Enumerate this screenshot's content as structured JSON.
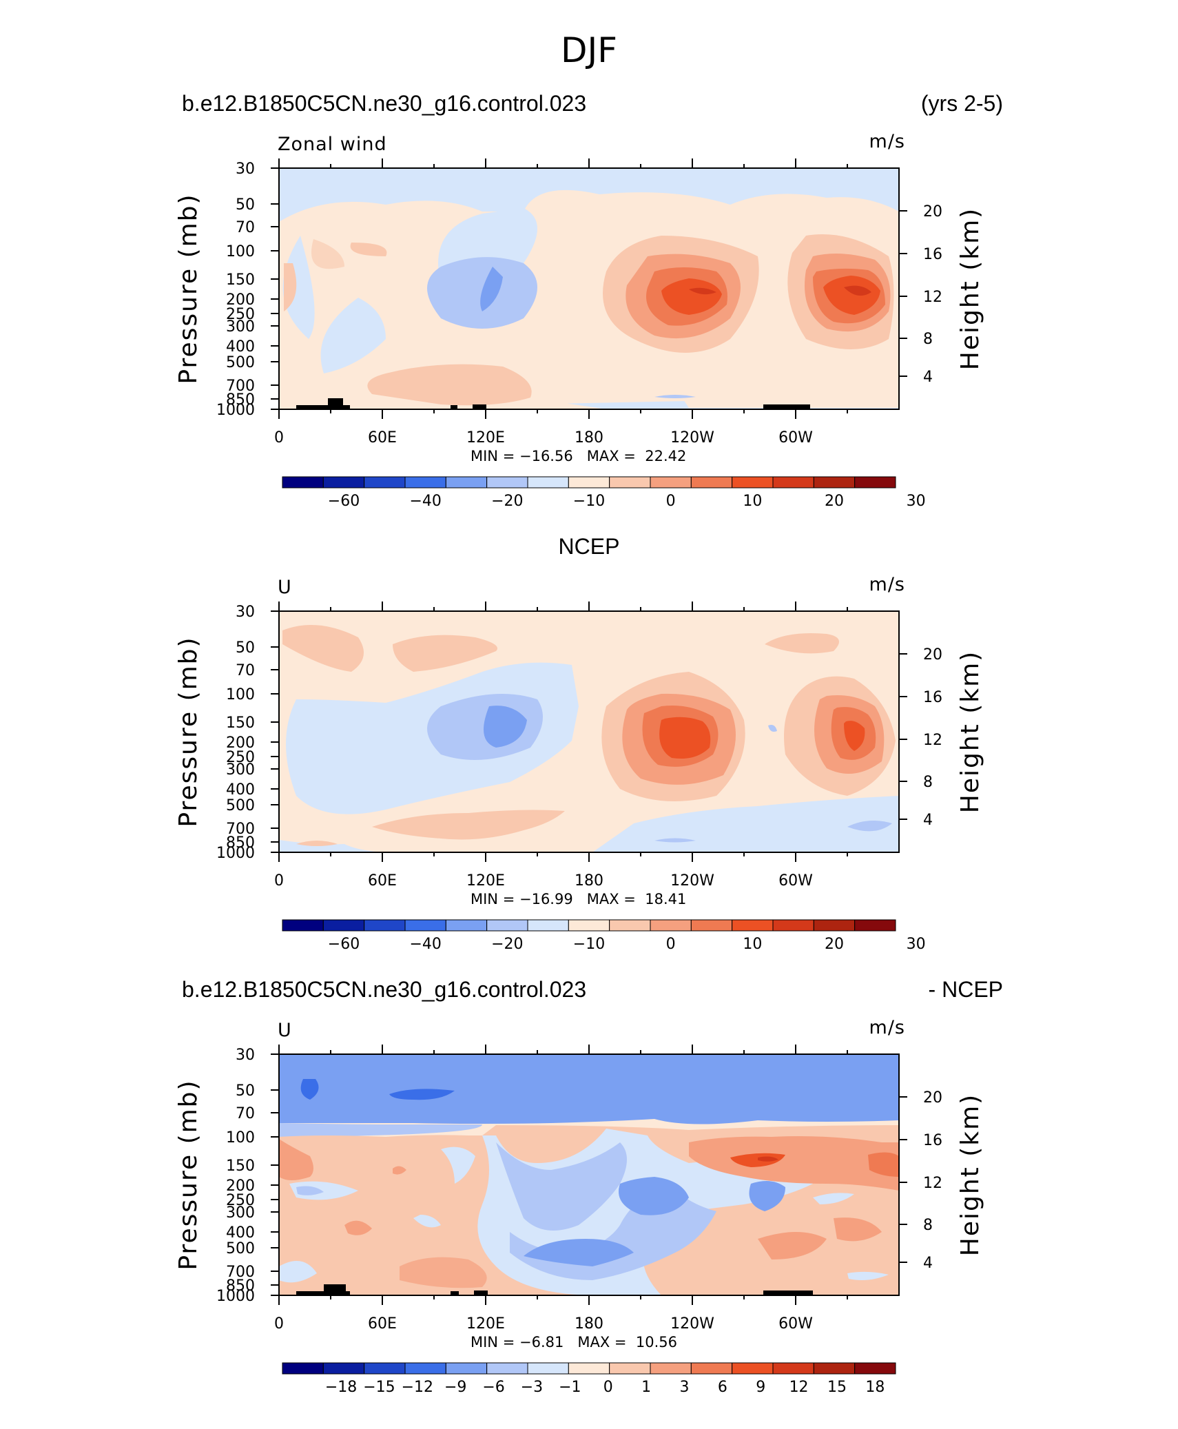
{
  "page_title": "DJF",
  "colors": {
    "ramp": [
      "#00007f",
      "#0a1ea0",
      "#1f46c8",
      "#3a6ee8",
      "#7aa0f2",
      "#b1c7f7",
      "#d6e6fb",
      "#fde9d8",
      "#f9c8ae",
      "#f5a07f",
      "#ef7a52",
      "#ec5124",
      "#d4391a",
      "#ad2410",
      "#85090c"
    ],
    "land": "#000000"
  },
  "chart_data": [
    {
      "type": "contour",
      "panel_title_left": "b.e12.B1850C5CN.ne30_g16.control.023",
      "panel_title_right": "(yrs 2-5)",
      "variable": "Zonal wind",
      "units": "m/s",
      "ylabel": "Pressure  (mb)",
      "y2label": "Height  (km)",
      "yticks": [
        "30",
        "50",
        "70",
        "100",
        "150",
        "200",
        "250",
        "300",
        "400",
        "500",
        "700",
        "850",
        "1000"
      ],
      "y2ticks": [
        "20",
        "16",
        "12",
        "8",
        "4"
      ],
      "xticks": [
        "0",
        "60E",
        "120E",
        "180",
        "120W",
        "60W"
      ],
      "min_label": "MIN =",
      "min": "−16.56",
      "max_label": "MAX =",
      "max": "22.42",
      "colorbar_levels": [
        "−60",
        "−40",
        "−20",
        "−10",
        "0",
        "10",
        "20",
        "30"
      ]
    },
    {
      "type": "contour",
      "panel_title_center": "NCEP",
      "variable": "U",
      "units": "m/s",
      "ylabel": "Pressure  (mb)",
      "y2label": "Height  (km)",
      "yticks": [
        "30",
        "50",
        "70",
        "100",
        "150",
        "200",
        "250",
        "300",
        "400",
        "500",
        "700",
        "850",
        "1000"
      ],
      "y2ticks": [
        "20",
        "16",
        "12",
        "8",
        "4"
      ],
      "xticks": [
        "0",
        "60E",
        "120E",
        "180",
        "120W",
        "60W"
      ],
      "min_label": "MIN =",
      "min": "−16.99",
      "max_label": "MAX =",
      "max": "18.41",
      "colorbar_levels": [
        "−60",
        "−40",
        "−20",
        "−10",
        "0",
        "10",
        "20",
        "30"
      ]
    },
    {
      "type": "contour",
      "panel_title_left": "b.e12.B1850C5CN.ne30_g16.control.023",
      "panel_title_right": "- NCEP",
      "variable": "U",
      "units": "m/s",
      "ylabel": "Pressure  (mb)",
      "y2label": "Height  (km)",
      "yticks": [
        "30",
        "50",
        "70",
        "100",
        "150",
        "200",
        "250",
        "300",
        "400",
        "500",
        "700",
        "850",
        "1000"
      ],
      "y2ticks": [
        "20",
        "16",
        "12",
        "8",
        "4"
      ],
      "xticks": [
        "0",
        "60E",
        "120E",
        "180",
        "120W",
        "60W"
      ],
      "min_label": "MIN =",
      "min": "−6.81",
      "max_label": "MAX =",
      "max": "10.56",
      "colorbar_levels": [
        "−18",
        "−15",
        "−12",
        "−9",
        "−6",
        "−3",
        "−1",
        "0",
        "1",
        "3",
        "6",
        "9",
        "12",
        "15",
        "18"
      ]
    }
  ]
}
